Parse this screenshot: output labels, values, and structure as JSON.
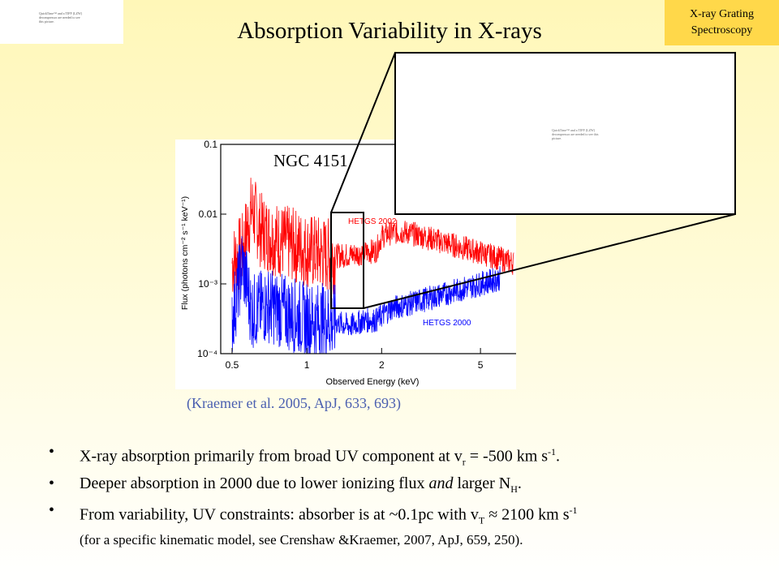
{
  "slide": {
    "title": "Absorption Variability in X-rays",
    "badge": {
      "line1": "X-ray Grating",
      "line2": "Spectroscopy"
    },
    "logo_placeholder": "QuickTime™ and a TIFF (LZW) decompressor are needed to see this picture.",
    "zoom_placeholder": "QuickTime™ and a TIFF (LZW) decompressor are needed to see this picture.",
    "ngc_label": "NGC 4151",
    "citation": "(Kraemer et al. 2005, ApJ, 633, 693)",
    "bullets": {
      "b1_pre": "X-ray absorption primarily from broad UV component at v",
      "b1_sub": "r",
      "b1_mid": " = -500 km s",
      "b1_sup": "-1",
      "b1_end": ".",
      "b2_pre": "Deeper absorption in 2000 due to lower ionizing flux ",
      "b2_em": "and",
      "b2_mid": " larger N",
      "b2_sub": "H",
      "b2_end": ".",
      "b3_pre": "From variability, UV constraints: absorber is at ~0.1pc with v",
      "b3_sub": "T",
      "b3_mid": " ≈ 2100 km s",
      "b3_sup": "-1",
      "b3_note": "(for a specific kinematic model, see Crenshaw &Kraemer, 2007, ApJ, 659, 250)."
    }
  },
  "chart_data": {
    "type": "line",
    "title": "",
    "xlabel": "Observed Energy (keV)",
    "ylabel": "Flux (photons cm⁻² s⁻¹ keV⁻¹)",
    "x_scale": "log",
    "y_scale": "log",
    "xlim": [
      0.45,
      7.5
    ],
    "ylim": [
      0.0001,
      0.1
    ],
    "x_ticks": [
      {
        "value": 0.5,
        "label": "0.5"
      },
      {
        "value": 1,
        "label": "1"
      },
      {
        "value": 2,
        "label": "2"
      },
      {
        "value": 5,
        "label": "5"
      }
    ],
    "y_ticks": [
      {
        "value": 0.1,
        "label": "0.1"
      },
      {
        "value": 0.01,
        "label": "0.01"
      },
      {
        "value": 0.001,
        "label": "10⁻³"
      },
      {
        "value": 0.0001,
        "label": "10⁻⁴"
      }
    ],
    "series": [
      {
        "name": "HETGS 2002",
        "color": "#ff0000",
        "x": [
          0.5,
          0.55,
          0.6,
          0.65,
          0.7,
          0.8,
          0.9,
          1.0,
          1.1,
          1.2,
          1.3,
          1.5,
          1.7,
          1.9,
          2.0,
          2.2,
          2.5,
          3.0,
          3.5,
          4.0,
          5.0,
          6.0,
          6.8
        ],
        "y": [
          0.002,
          0.003,
          0.012,
          0.006,
          0.005,
          0.004,
          0.0035,
          0.003,
          0.0028,
          0.0026,
          0.0025,
          0.0026,
          0.0028,
          0.003,
          0.0048,
          0.0055,
          0.0055,
          0.0047,
          0.004,
          0.0035,
          0.0028,
          0.0023,
          0.002
        ]
      },
      {
        "name": "HETGS 2000",
        "color": "#0000ff",
        "x": [
          0.5,
          0.55,
          0.6,
          0.7,
          0.8,
          0.9,
          1.0,
          1.2,
          1.5,
          1.7,
          1.9,
          2.0,
          2.2,
          2.5,
          3.0,
          3.5,
          4.0,
          5.0,
          6.0
        ],
        "y": [
          0.0003,
          0.002,
          0.0004,
          0.0005,
          0.0004,
          0.00035,
          0.0003,
          0.0003,
          0.00025,
          0.0003,
          0.0003,
          0.00035,
          0.00045,
          0.0005,
          0.0006,
          0.0007,
          0.0008,
          0.001,
          0.0012
        ]
      }
    ],
    "legend_placement": "in-plot"
  },
  "colors": {
    "badge_bg": "#ffd84a",
    "citation": "#4a5fb0",
    "series_2002": "#ff0000",
    "series_2000": "#0000ff"
  }
}
